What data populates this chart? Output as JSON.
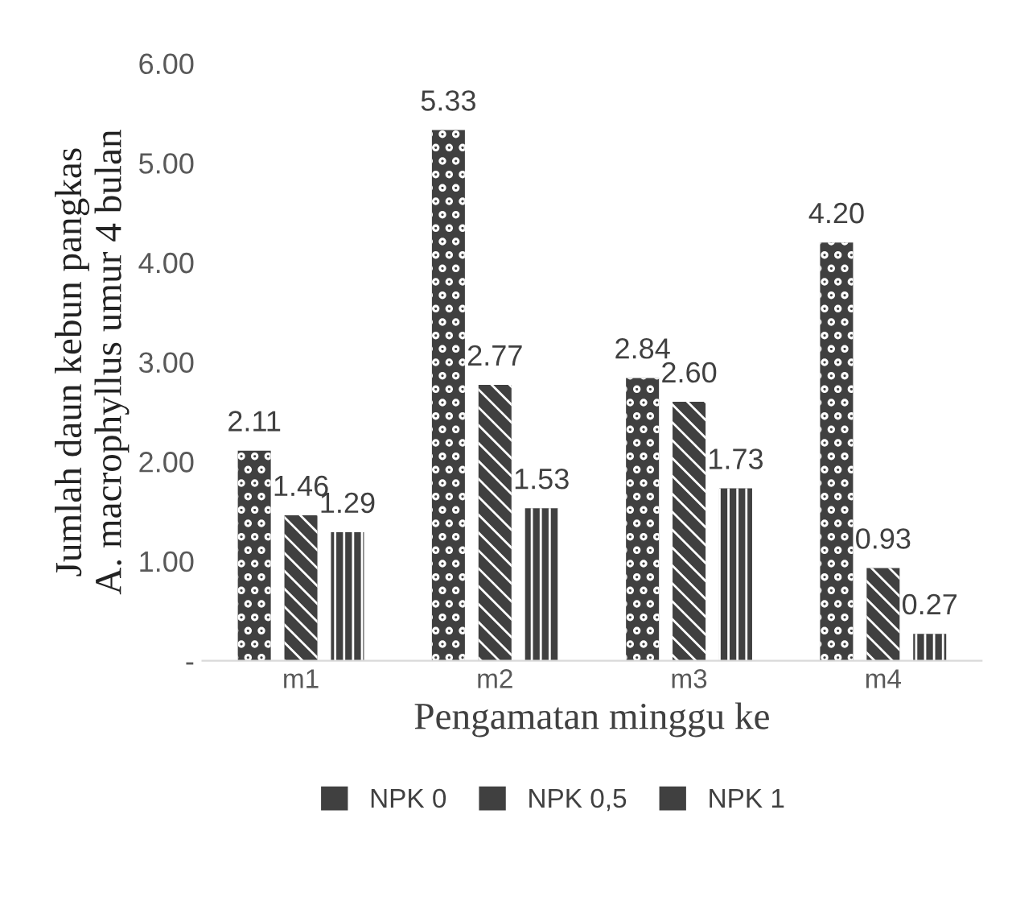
{
  "chart_data": {
    "type": "bar",
    "xlabel": "Pengamatan minggu ke",
    "ylabel": "Jumlah daun kebun pangkas\nA. macrophyllus umur 4 bulan",
    "categories": [
      "m1",
      "m2",
      "m3",
      "m4"
    ],
    "series": [
      {
        "name": "NPK 0",
        "color": "#404040",
        "values": [
          2.11,
          5.33,
          2.84,
          4.2
        ],
        "value_labels": [
          "2.11",
          "5.33",
          "2.84",
          "4.20"
        ]
      },
      {
        "name": "NPK 0,5",
        "color": "#404040",
        "values": [
          1.46,
          2.77,
          2.6,
          0.93
        ],
        "value_labels": [
          "1.46",
          "2.77",
          "2.60",
          "0.93"
        ]
      },
      {
        "name": "NPK 1",
        "color": "#404040",
        "values": [
          1.29,
          1.53,
          1.73,
          0.27
        ],
        "value_labels": [
          "1.29",
          "1.53",
          "1.73",
          "0.27"
        ]
      }
    ],
    "ylim": [
      0,
      6
    ],
    "yticks": [
      {
        "value": 0,
        "label": "-"
      },
      {
        "value": 1,
        "label": "1.00"
      },
      {
        "value": 2,
        "label": "2.00"
      },
      {
        "value": 3,
        "label": "3.00"
      },
      {
        "value": 4,
        "label": "4.00"
      },
      {
        "value": 5,
        "label": "5.00"
      },
      {
        "value": 6,
        "label": "6.00"
      }
    ],
    "grid": false,
    "legend": "bottom"
  }
}
